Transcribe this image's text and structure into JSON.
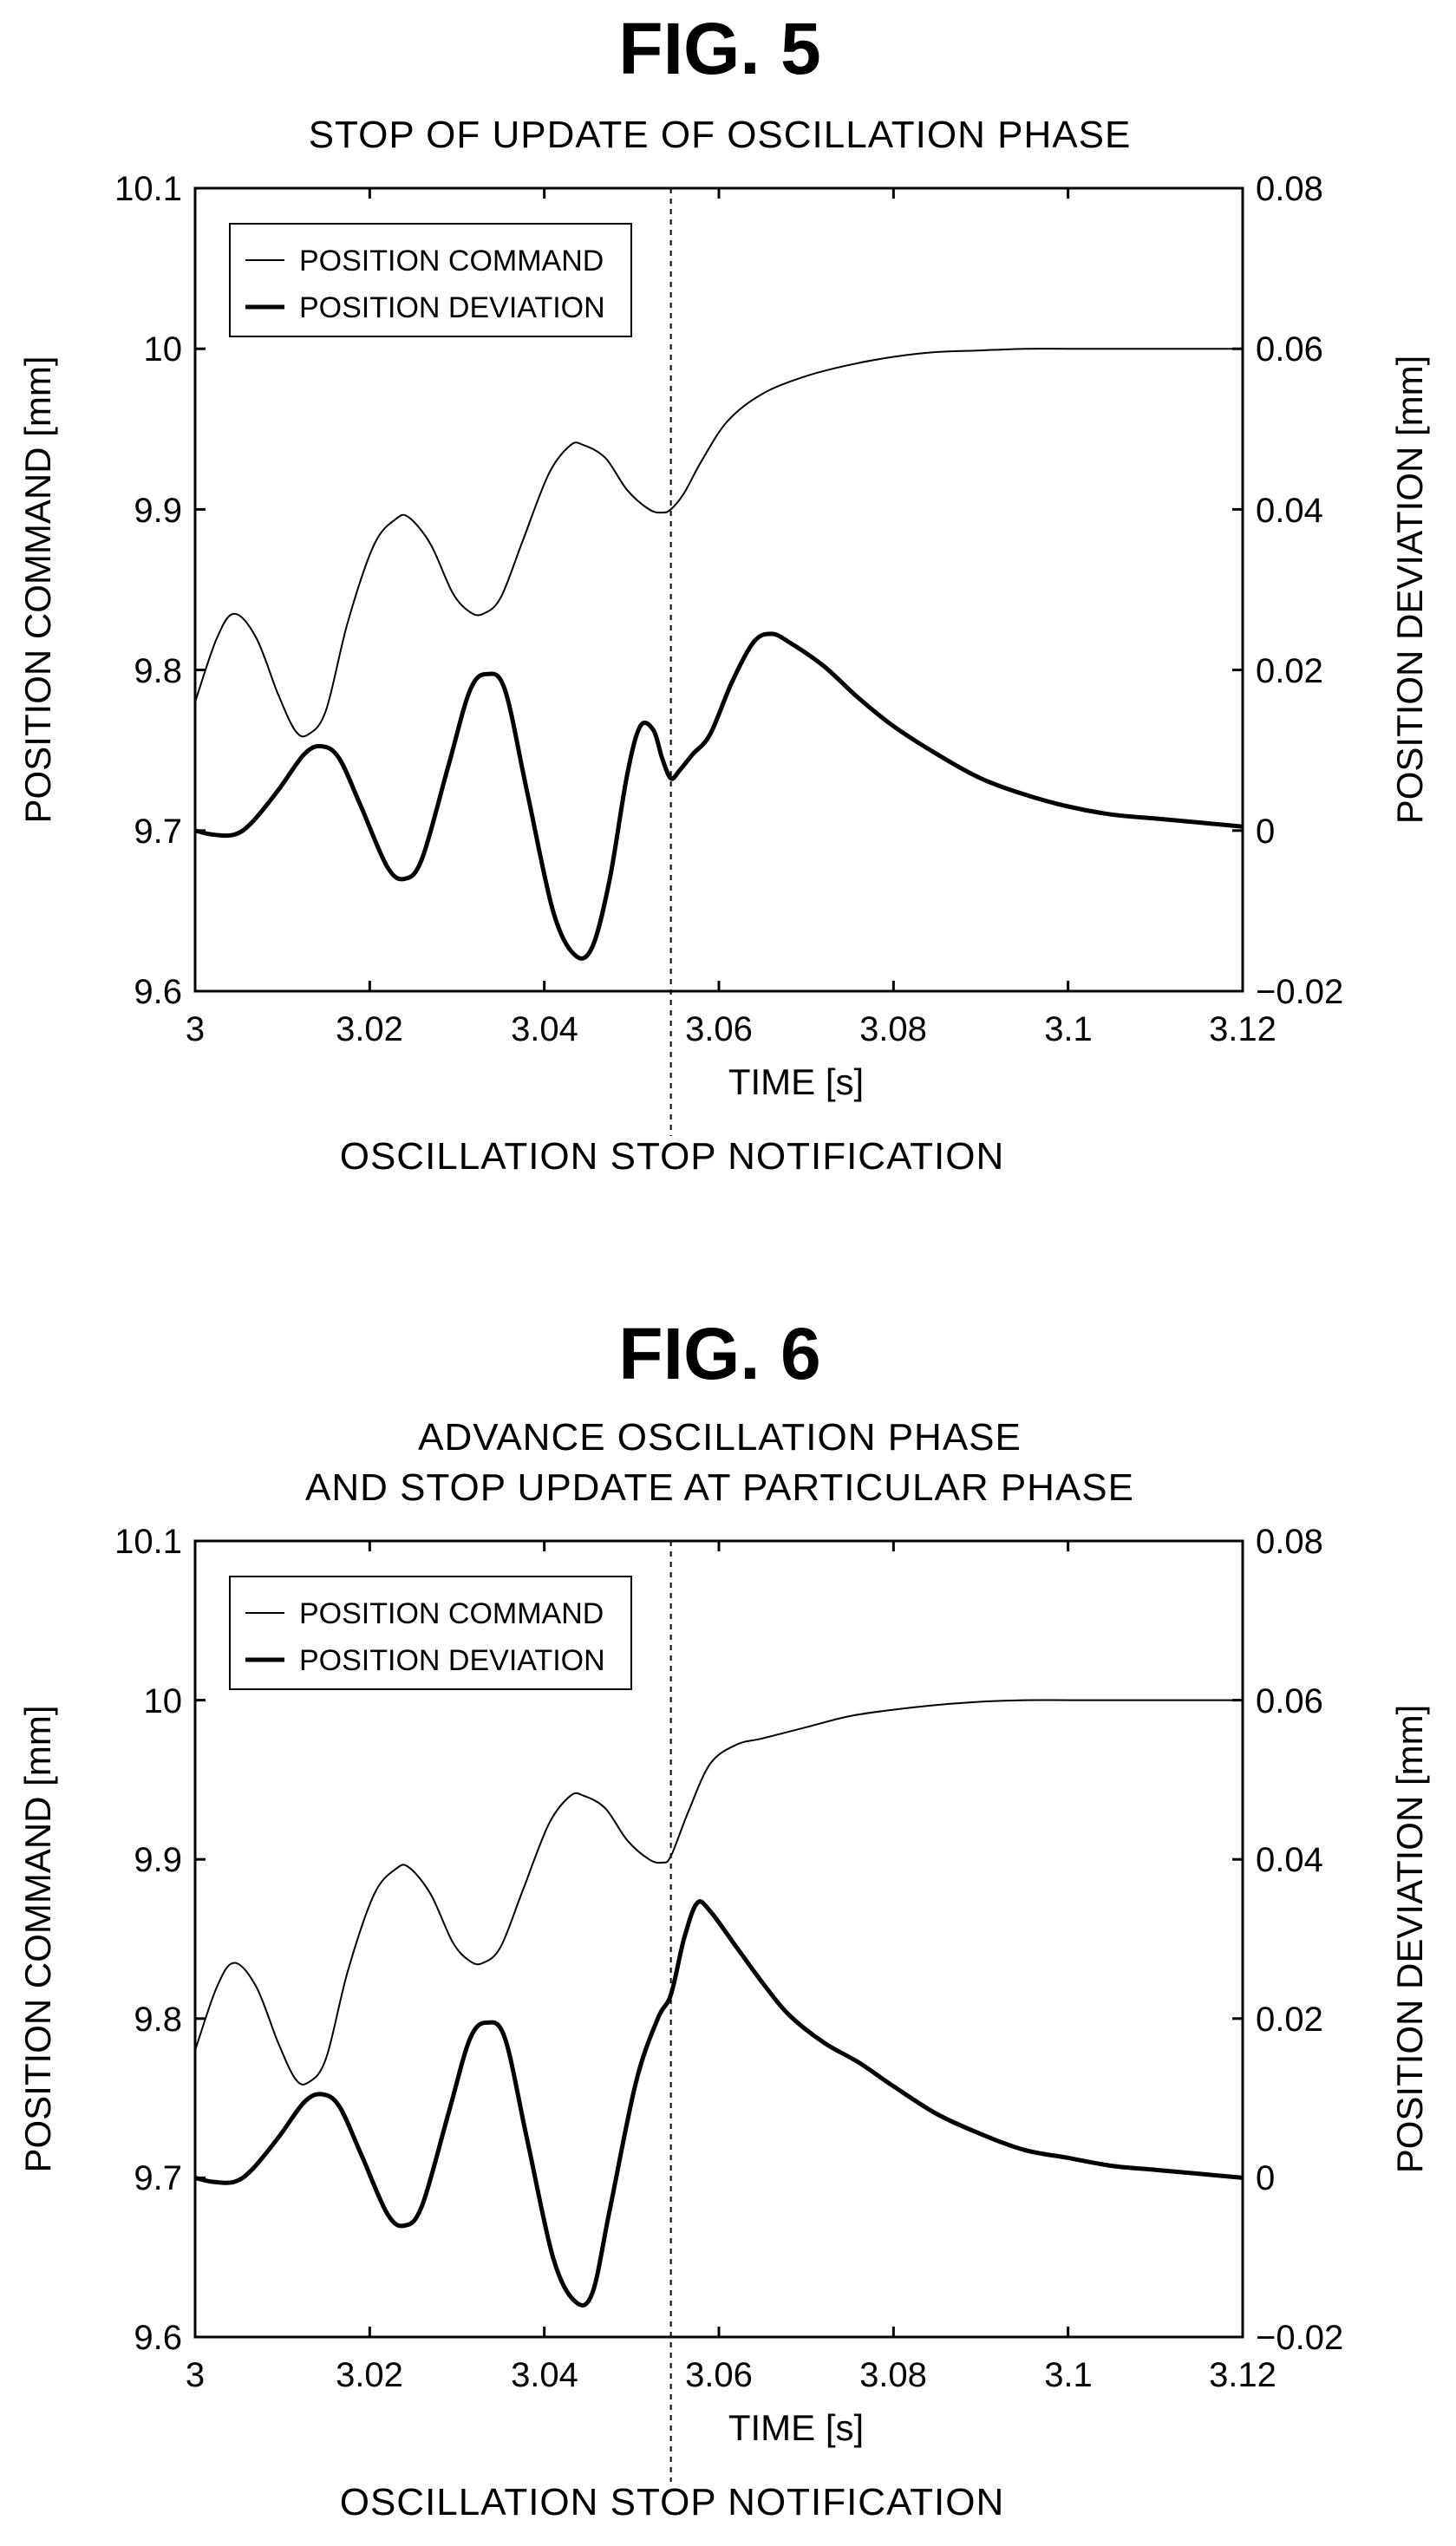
{
  "chart_data": [
    {
      "type": "line",
      "figure_label": "FIG. 5",
      "title": "STOP OF UPDATE OF OSCILLATION PHASE",
      "xlabel": "TIME [s]",
      "ylabel": "POSITION COMMAND [mm]",
      "y2label": "POSITION DEVIATION [mm]",
      "xlim": [
        3,
        3.12
      ],
      "ylim": [
        9.6,
        10.1
      ],
      "y2lim": [
        -0.02,
        0.08
      ],
      "xticks": [
        "3",
        "3.02",
        "3.04",
        "3.06",
        "3.08",
        "3.1",
        "3.12"
      ],
      "yticks": [
        "9.6",
        "9.7",
        "9.8",
        "9.9",
        "10",
        "10.1"
      ],
      "y2ticks": [
        "−0.02",
        "0",
        "0.02",
        "0.04",
        "0.06",
        "0.08"
      ],
      "legend_placement": "top-left",
      "grid": false,
      "annotation": "OSCILLATION STOP NOTIFICATION",
      "annotation_x": 3.0545,
      "series": [
        {
          "name": "POSITION COMMAND",
          "axis": "left",
          "x": [
            3.0,
            3.0025,
            3.0045,
            3.007,
            3.0095,
            3.0115,
            3.013,
            3.015,
            3.0175,
            3.0205,
            3.023,
            3.0245,
            3.027,
            3.0295,
            3.0315,
            3.033,
            3.035,
            3.0375,
            3.0405,
            3.043,
            3.0445,
            3.047,
            3.0495,
            3.052,
            3.0535,
            3.0545,
            3.056,
            3.058,
            3.061,
            3.065,
            3.07,
            3.075,
            3.08,
            3.085,
            3.09,
            3.095,
            3.1,
            3.105,
            3.11,
            3.115,
            3.12
          ],
          "y": [
            9.78,
            9.82,
            9.835,
            9.82,
            9.785,
            9.762,
            9.76,
            9.775,
            9.83,
            9.878,
            9.894,
            9.895,
            9.878,
            9.848,
            9.836,
            9.835,
            9.845,
            9.88,
            9.922,
            9.94,
            9.94,
            9.932,
            9.912,
            9.9,
            9.898,
            9.9,
            9.91,
            9.93,
            9.955,
            9.972,
            9.983,
            9.99,
            9.995,
            9.998,
            9.999,
            10.0,
            10.0,
            10.0,
            10.0,
            10.0,
            10.0
          ]
        },
        {
          "name": "POSITION DEVIATION",
          "axis": "right",
          "x": [
            3.0,
            3.002,
            3.0045,
            3.0065,
            3.0095,
            3.0125,
            3.0145,
            3.0165,
            3.019,
            3.022,
            3.024,
            3.026,
            3.029,
            3.0315,
            3.0335,
            3.0355,
            3.038,
            3.041,
            3.0435,
            3.0455,
            3.0475,
            3.0495,
            3.051,
            3.0525,
            3.0535,
            3.0545,
            3.0555,
            3.057,
            3.059,
            3.0615,
            3.064,
            3.066,
            3.068,
            3.072,
            3.076,
            3.08,
            3.085,
            3.09,
            3.095,
            3.1,
            3.105,
            3.11,
            3.115,
            3.12
          ],
          "y": [
            0.0,
            -0.0005,
            -0.0005,
            0.001,
            0.005,
            0.0095,
            0.0105,
            0.009,
            0.003,
            -0.0045,
            -0.006,
            -0.0035,
            0.008,
            0.0175,
            0.0195,
            0.0175,
            0.005,
            -0.01,
            -0.0155,
            -0.0145,
            -0.006,
            0.007,
            0.013,
            0.0125,
            0.009,
            0.0065,
            0.0075,
            0.0095,
            0.012,
            0.0185,
            0.0235,
            0.0245,
            0.0235,
            0.0205,
            0.0165,
            0.013,
            0.0095,
            0.0065,
            0.0045,
            0.003,
            0.002,
            0.0015,
            0.001,
            0.0005
          ]
        }
      ]
    },
    {
      "type": "line",
      "figure_label": "FIG. 6",
      "title": "ADVANCE OSCILLATION PHASE",
      "title_line2": "AND STOP UPDATE AT PARTICULAR PHASE",
      "xlabel": "TIME [s]",
      "ylabel": "POSITION COMMAND [mm]",
      "y2label": "POSITION DEVIATION [mm]",
      "xlim": [
        3,
        3.12
      ],
      "ylim": [
        9.6,
        10.1
      ],
      "y2lim": [
        -0.02,
        0.08
      ],
      "xticks": [
        "3",
        "3.02",
        "3.04",
        "3.06",
        "3.08",
        "3.1",
        "3.12"
      ],
      "yticks": [
        "9.6",
        "9.7",
        "9.8",
        "9.9",
        "10",
        "10.1"
      ],
      "y2ticks": [
        "−0.02",
        "0",
        "0.02",
        "0.04",
        "0.06",
        "0.08"
      ],
      "legend_placement": "top-left",
      "grid": false,
      "annotation": "OSCILLATION STOP NOTIFICATION",
      "annotation_x": 3.0545,
      "series": [
        {
          "name": "POSITION COMMAND",
          "axis": "left",
          "x": [
            3.0,
            3.0025,
            3.0045,
            3.007,
            3.0095,
            3.0115,
            3.013,
            3.015,
            3.0175,
            3.0205,
            3.023,
            3.0245,
            3.027,
            3.0295,
            3.0315,
            3.033,
            3.035,
            3.0375,
            3.0405,
            3.043,
            3.0445,
            3.047,
            3.0495,
            3.052,
            3.0535,
            3.0545,
            3.0565,
            3.059,
            3.062,
            3.065,
            3.07,
            3.075,
            3.08,
            3.085,
            3.09,
            3.095,
            3.1,
            3.105,
            3.11,
            3.115,
            3.12
          ],
          "y": [
            9.78,
            9.82,
            9.835,
            9.82,
            9.785,
            9.762,
            9.76,
            9.775,
            9.83,
            9.878,
            9.894,
            9.895,
            9.878,
            9.848,
            9.836,
            9.835,
            9.845,
            9.88,
            9.922,
            9.94,
            9.94,
            9.932,
            9.912,
            9.9,
            9.898,
            9.902,
            9.93,
            9.96,
            9.972,
            9.976,
            9.983,
            9.99,
            9.994,
            9.997,
            9.999,
            10.0,
            10.0,
            10.0,
            10.0,
            10.0,
            10.0
          ]
        },
        {
          "name": "POSITION DEVIATION",
          "axis": "right",
          "x": [
            3.0,
            3.002,
            3.0045,
            3.0065,
            3.0095,
            3.0125,
            3.0145,
            3.0165,
            3.019,
            3.022,
            3.024,
            3.026,
            3.029,
            3.0315,
            3.0335,
            3.0355,
            3.038,
            3.041,
            3.0435,
            3.0455,
            3.0475,
            3.0505,
            3.053,
            3.0545,
            3.056,
            3.0575,
            3.059,
            3.062,
            3.065,
            3.068,
            3.072,
            3.076,
            3.08,
            3.085,
            3.09,
            3.095,
            3.1,
            3.105,
            3.11,
            3.115,
            3.12
          ],
          "y": [
            0.0,
            -0.0005,
            -0.0005,
            0.001,
            0.005,
            0.0095,
            0.0105,
            0.009,
            0.003,
            -0.0045,
            -0.006,
            -0.0035,
            0.008,
            0.0175,
            0.0195,
            0.0175,
            0.005,
            -0.01,
            -0.0155,
            -0.0145,
            -0.004,
            0.012,
            0.02,
            0.023,
            0.03,
            0.0345,
            0.0335,
            0.029,
            0.0245,
            0.0205,
            0.017,
            0.0145,
            0.0115,
            0.008,
            0.0055,
            0.0035,
            0.0025,
            0.0015,
            0.001,
            0.0005,
            0.0
          ]
        }
      ]
    }
  ]
}
